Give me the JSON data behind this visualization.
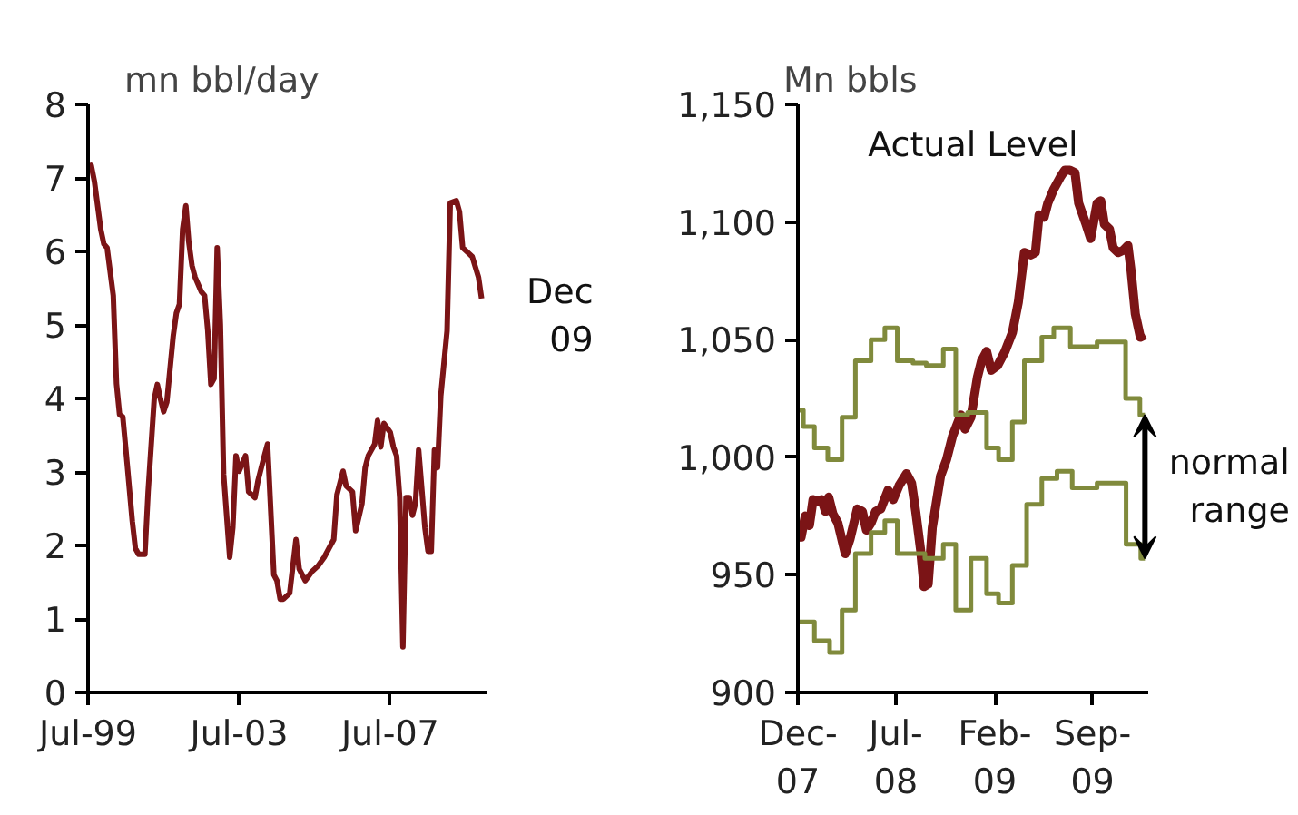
{
  "chart_data": [
    {
      "type": "line",
      "ylabel": "mn bbl/day",
      "annotations": [
        "Dec 09"
      ],
      "grid": false,
      "xlim": [
        "1999-07",
        "2010-02"
      ],
      "xticks": [
        {
          "value": "1999-07",
          "label": "Jul-99"
        },
        {
          "value": "2003-07",
          "label": "Jul-03"
        },
        {
          "value": "2007-07",
          "label": "Jul-07"
        }
      ],
      "ylim": [
        0,
        8
      ],
      "yticks": [
        0,
        1,
        2,
        3,
        4,
        5,
        6,
        7,
        8
      ],
      "series": [
        {
          "color": "#7b1416",
          "x": [
            "1999-07",
            "1999-08",
            "1999-09",
            "1999-11",
            "1999-12",
            "2000-01",
            "2000-03",
            "2000-04",
            "2000-05",
            "2000-06",
            "2000-07",
            "2000-09",
            "2000-10",
            "2000-11",
            "2001-01",
            "2001-02",
            "2001-04",
            "2001-05",
            "2001-06",
            "2001-07",
            "2001-08",
            "2001-10",
            "2001-11",
            "2001-12",
            "2002-01",
            "2002-02",
            "2002-03",
            "2002-04",
            "2002-05",
            "2002-07",
            "2002-08",
            "2002-09",
            "2002-10",
            "2002-11",
            "2002-12",
            "2003-01",
            "2003-02",
            "2003-04",
            "2003-05",
            "2003-06",
            "2003-07",
            "2003-09",
            "2003-10",
            "2003-12",
            "2004-01",
            "2004-03",
            "2004-04",
            "2004-06",
            "2004-07",
            "2004-08",
            "2004-09",
            "2004-11",
            "2005-01",
            "2005-02",
            "2005-04",
            "2005-06",
            "2005-08",
            "2005-10",
            "2005-12",
            "2006-01",
            "2006-02",
            "2006-04",
            "2006-05",
            "2006-07",
            "2006-08",
            "2006-10",
            "2006-11",
            "2006-12",
            "2007-02",
            "2007-03",
            "2007-04",
            "2007-05",
            "2007-07",
            "2007-08",
            "2007-09",
            "2007-10",
            "2007-11",
            "2007-12",
            "2008-01",
            "2008-02",
            "2008-03",
            "2008-04",
            "2008-06",
            "2008-07",
            "2008-08",
            "2008-09",
            "2008-10",
            "2008-11",
            "2009-01",
            "2009-02",
            "2009-04",
            "2009-05",
            "2009-06",
            "2009-08",
            "2009-09",
            "2009-11",
            "2009-12"
          ],
          "values": [
            7.1,
            7.17,
            6.95,
            6.3,
            6.1,
            6.05,
            5.4,
            4.2,
            3.78,
            3.75,
            3.3,
            2.33,
            1.96,
            1.88,
            1.88,
            2.73,
            3.99,
            4.19,
            3.99,
            3.82,
            3.95,
            4.84,
            5.16,
            5.28,
            6.3,
            6.62,
            6.13,
            5.81,
            5.65,
            5.45,
            5.4,
            4.92,
            4.19,
            4.27,
            6.05,
            5.0,
            2.97,
            1.84,
            2.24,
            3.22,
            3.01,
            3.22,
            2.73,
            2.65,
            2.89,
            3.22,
            3.38,
            1.6,
            1.52,
            1.27,
            1.27,
            1.35,
            2.08,
            1.68,
            1.52,
            1.64,
            1.72,
            1.84,
            2.0,
            2.08,
            2.69,
            3.01,
            2.81,
            2.73,
            2.2,
            2.57,
            3.06,
            3.22,
            3.38,
            3.7,
            3.34,
            3.66,
            3.54,
            3.34,
            3.22,
            2.65,
            0.62,
            2.65,
            2.65,
            2.41,
            2.57,
            3.3,
            2.24,
            1.92,
            1.92,
            3.3,
            3.06,
            4.03,
            4.92,
            6.66,
            6.69,
            6.54,
            6.05,
            5.97,
            5.93,
            5.65,
            5.36
          ]
        }
      ]
    },
    {
      "type": "line",
      "ylabel": "Mn bbls",
      "annotations": [
        "normal range"
      ],
      "grid": false,
      "xlim": [
        "2007-12-01",
        "2009-12-31"
      ],
      "xticks": [
        {
          "value": "2007-12-01",
          "label": "Dec-07"
        },
        {
          "value": "2008-07-01",
          "label": "Jul-08"
        },
        {
          "value": "2009-02-01",
          "label": "Feb-09"
        },
        {
          "value": "2009-09-01",
          "label": "Sep-09"
        }
      ],
      "ylim": [
        900,
        1150
      ],
      "yticks": [
        {
          "value": 900,
          "label": "900"
        },
        {
          "value": 950,
          "label": "950"
        },
        {
          "value": 1000,
          "label": "1,000"
        },
        {
          "value": 1050,
          "label": "1,050"
        },
        {
          "value": 1100,
          "label": "1,100"
        },
        {
          "value": 1150,
          "label": "1,150"
        }
      ],
      "series": [
        {
          "name": "Actual Level",
          "type": "line",
          "color": "#7b1416",
          "x": [
            "2007-12-01",
            "2007-12-08",
            "2007-12-17",
            "2007-12-26",
            "2008-01-03",
            "2008-01-13",
            "2008-01-22",
            "2008-01-30",
            "2008-02-06",
            "2008-02-15",
            "2008-02-26",
            "2008-03-13",
            "2008-03-23",
            "2008-04-08",
            "2008-04-19",
            "2008-04-28",
            "2008-05-08",
            "2008-05-18",
            "2008-05-29",
            "2008-06-14",
            "2008-06-25",
            "2008-07-08",
            "2008-07-24",
            "2008-08-04",
            "2008-08-13",
            "2008-08-24",
            "2008-08-31",
            "2008-09-09",
            "2008-09-18",
            "2008-10-06",
            "2008-10-19",
            "2008-11-01",
            "2008-11-19",
            "2008-11-28",
            "2008-12-11",
            "2008-12-25",
            "2009-01-03",
            "2009-01-14",
            "2009-01-24",
            "2009-02-07",
            "2009-02-23",
            "2009-03-11",
            "2009-03-24",
            "2009-04-06",
            "2009-04-20",
            "2009-04-30",
            "2009-05-08",
            "2009-05-19",
            "2009-05-27",
            "2009-06-09",
            "2009-06-23",
            "2009-07-03",
            "2009-07-14",
            "2009-07-25",
            "2009-08-02",
            "2009-08-18",
            "2009-08-28",
            "2009-09-11",
            "2009-09-19",
            "2009-09-27",
            "2009-10-08",
            "2009-10-16",
            "2009-10-27",
            "2009-11-07",
            "2009-11-17",
            "2009-11-24",
            "2009-12-03",
            "2009-12-14",
            "2009-12-24"
          ],
          "values": [
            973,
            966,
            975,
            971,
            982,
            981,
            982,
            977,
            983,
            976,
            972,
            959,
            965,
            978,
            977,
            969,
            972,
            977,
            978,
            986,
            982,
            988,
            993,
            989,
            977,
            960,
            945,
            946,
            970,
            992,
            999,
            1009,
            1018,
            1012,
            1017,
            1034,
            1041,
            1045,
            1037,
            1039,
            1045,
            1053,
            1066,
            1087,
            1086,
            1087,
            1103,
            1102,
            1108,
            1114,
            1119,
            1122,
            1122,
            1121,
            1108,
            1099,
            1093,
            1108,
            1109,
            1099,
            1097,
            1089,
            1087,
            1088,
            1090,
            1079,
            1061,
            1051,
            1052
          ]
        },
        {
          "type": "step",
          "color": "#808a3c",
          "x": [
            "2007-12-01",
            "2007-12-13",
            "2008-01-06",
            "2008-02-04",
            "2008-03-06",
            "2008-04-04",
            "2008-05-08",
            "2008-06-07",
            "2008-07-04",
            "2008-08-07",
            "2008-09-05",
            "2008-10-12",
            "2008-11-08",
            "2008-12-04",
            "2009-01-14",
            "2009-02-09",
            "2009-03-11",
            "2009-04-06",
            "2009-05-14",
            "2009-06-09",
            "2009-07-15",
            "2009-08-12",
            "2009-09-11",
            "2009-11-12",
            "2009-12-13",
            "2009-12-24"
          ],
          "values": [
            1020,
            1013,
            1004,
            999,
            1017,
            1041,
            1050,
            1055,
            1041,
            1040,
            1039,
            1046,
            1018,
            1019,
            1004,
            999,
            1015,
            1041,
            1051,
            1055,
            1047,
            1047,
            1049,
            1025,
            1018,
            1018
          ]
        },
        {
          "type": "step",
          "color": "#808a3c",
          "x": [
            "2007-12-01",
            "2008-01-06",
            "2008-02-08",
            "2008-03-06",
            "2008-04-04",
            "2008-05-08",
            "2008-06-07",
            "2008-07-04",
            "2008-09-02",
            "2008-10-12",
            "2008-11-08",
            "2008-12-11",
            "2009-01-14",
            "2009-02-09",
            "2009-03-11",
            "2009-04-11",
            "2009-05-14",
            "2009-06-16",
            "2009-07-19",
            "2009-09-11",
            "2009-11-13",
            "2009-12-15",
            "2009-12-24"
          ],
          "values": [
            930,
            922,
            917,
            935,
            959,
            968,
            973,
            959,
            957,
            963,
            935,
            957,
            942,
            938,
            954,
            980,
            991,
            994,
            987,
            989,
            963,
            957,
            957
          ]
        }
      ]
    }
  ]
}
